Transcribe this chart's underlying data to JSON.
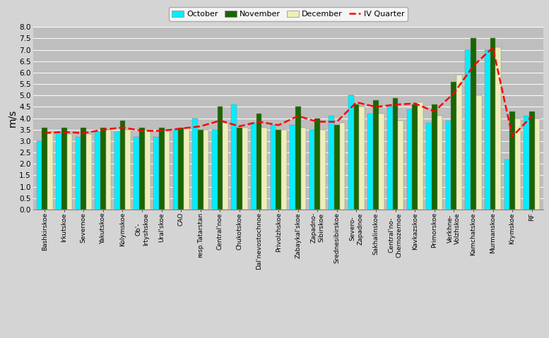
{
  "categories": [
    "Bashkirskoe",
    "Irkutskoe",
    "Severnoe",
    "Yakutskoe",
    "Kolymskoe",
    "Ob'-\nIrtyshskoe",
    "Ural'skoe",
    "CAO",
    "resp.Tatarstan",
    "Central'noe",
    "Chukotskoe",
    "Dal'nevostochnoe",
    "Privolzhskoe",
    "Zabaykal'skoe",
    "Zapadno-\nSibirskoe",
    "Srednesibirskoe",
    "Severo-\nZapadnoe",
    "Sakhalinskoe",
    "Central'no-\nChernozernoe",
    "Kavkazskoe",
    "Primorskoe",
    "Verkhne-\nVolzhskoe",
    "Kamchatskoe",
    "Murmanskoe",
    "Krymskoe",
    "RF"
  ],
  "october": [
    3.0,
    3.3,
    3.2,
    3.4,
    3.4,
    3.2,
    3.2,
    3.5,
    4.0,
    3.5,
    4.6,
    3.8,
    3.7,
    3.7,
    3.5,
    4.1,
    5.0,
    4.2,
    4.5,
    4.4,
    3.8,
    3.9,
    7.0,
    7.0,
    2.2,
    4.1
  ],
  "november": [
    3.6,
    3.6,
    3.6,
    3.6,
    3.9,
    3.6,
    3.6,
    3.6,
    3.5,
    4.5,
    3.6,
    4.2,
    3.5,
    4.5,
    4.0,
    3.7,
    4.6,
    4.8,
    4.9,
    4.6,
    4.6,
    5.6,
    7.5,
    7.5,
    4.3,
    4.3
  ],
  "december": [
    3.4,
    3.3,
    3.3,
    3.5,
    3.5,
    3.5,
    3.5,
    3.6,
    3.5,
    3.8,
    3.6,
    3.6,
    3.5,
    3.6,
    3.5,
    3.8,
    4.5,
    4.2,
    3.9,
    4.7,
    4.1,
    5.9,
    5.0,
    7.1,
    4.0,
    4.0
  ],
  "iv_quarter": [
    3.35,
    3.4,
    3.35,
    3.5,
    3.6,
    3.45,
    3.45,
    3.55,
    3.65,
    3.9,
    3.65,
    3.85,
    3.7,
    4.1,
    3.85,
    3.85,
    4.7,
    4.5,
    4.6,
    4.65,
    4.3,
    5.1,
    6.3,
    7.1,
    3.2,
    4.1
  ],
  "colors": {
    "october": "#00EEFF",
    "november": "#1A6600",
    "december": "#EEEEBB",
    "iv_quarter": "#FF0000"
  },
  "ylabel": "m/s",
  "ylim": [
    0,
    8
  ],
  "yticks": [
    0,
    0.5,
    1.0,
    1.5,
    2.0,
    2.5,
    3.0,
    3.5,
    4.0,
    4.5,
    5.0,
    5.5,
    6.0,
    6.5,
    7.0,
    7.5,
    8.0
  ],
  "bg_color": "#BEBEBE",
  "fig_bg_color": "#D4D4D4",
  "grid_color": "#FFFFFF",
  "bar_width": 0.28,
  "figsize": [
    7.77,
    4.79
  ],
  "dpi": 100
}
